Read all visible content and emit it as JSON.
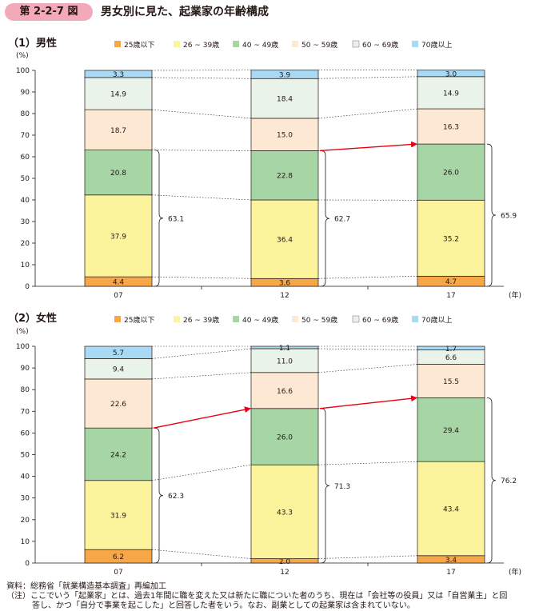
{
  "figure": {
    "number": "第 2-2-7 図",
    "title": "男女別に見た、起業家の年齢構成"
  },
  "colors": {
    "tag_background": "#f2a9b9",
    "series": [
      "#f7a748",
      "#fbf49c",
      "#a6d6a5",
      "#fde9d3",
      "#eaf3e9",
      "#a8d9f5"
    ],
    "arrow": "#e60012"
  },
  "chart_data": [
    {
      "type": "bar",
      "stacked": true,
      "panel_label": "（1）男性",
      "y_unit": "(%)",
      "x_unit": "(年)",
      "ylim": [
        0,
        100
      ],
      "y_ticks": [
        "0",
        "10",
        "20",
        "30",
        "40",
        "50",
        "60",
        "70",
        "80",
        "90",
        "100"
      ],
      "categories": [
        "07",
        "12",
        "17"
      ],
      "series": [
        {
          "name": "25歳以下",
          "values": [
            4.4,
            3.6,
            4.7
          ],
          "labels": [
            "4.4",
            "3.6",
            "4.7"
          ]
        },
        {
          "name": "26 ~ 39歳",
          "values": [
            37.9,
            36.4,
            35.2
          ],
          "labels": [
            "37.9",
            "36.4",
            "35.2"
          ]
        },
        {
          "name": "40 ~ 49歳",
          "values": [
            20.8,
            22.8,
            26.0
          ],
          "labels": [
            "20.8",
            "22.8",
            "26.0"
          ]
        },
        {
          "name": "50 ~ 59歳",
          "values": [
            18.7,
            15.0,
            16.3
          ],
          "labels": [
            "18.7",
            "15.0",
            "16.3"
          ]
        },
        {
          "name": "60 ~ 69歳",
          "values": [
            14.9,
            18.4,
            14.9
          ],
          "labels": [
            "14.9",
            "18.4",
            "14.9"
          ]
        },
        {
          "name": "70歳以上",
          "values": [
            3.3,
            3.9,
            3.0
          ],
          "labels": [
            "3.3",
            "3.9",
            "3.0"
          ]
        }
      ],
      "brace_totals": [
        "63.1",
        "62.7",
        "65.9"
      ],
      "arrows": [
        [
          1,
          2
        ]
      ],
      "legend_position": "top"
    },
    {
      "type": "bar",
      "stacked": true,
      "panel_label": "（2）女性",
      "y_unit": "(%)",
      "x_unit": "(年)",
      "ylim": [
        0,
        100
      ],
      "y_ticks": [
        "0",
        "10",
        "20",
        "30",
        "40",
        "50",
        "60",
        "70",
        "80",
        "90",
        "100"
      ],
      "categories": [
        "07",
        "12",
        "17"
      ],
      "series": [
        {
          "name": "25歳以下",
          "values": [
            6.2,
            2.0,
            3.4
          ],
          "labels": [
            "6.2",
            "2.0",
            "3.4"
          ]
        },
        {
          "name": "26 ~ 39歳",
          "values": [
            31.9,
            43.3,
            43.4
          ],
          "labels": [
            "31.9",
            "43.3",
            "43.4"
          ]
        },
        {
          "name": "40 ~ 49歳",
          "values": [
            24.2,
            26.0,
            29.4
          ],
          "labels": [
            "24.2",
            "26.0",
            "29.4"
          ]
        },
        {
          "name": "50 ~ 59歳",
          "values": [
            22.6,
            16.6,
            15.5
          ],
          "labels": [
            "22.6",
            "16.6",
            "15.5"
          ]
        },
        {
          "name": "60 ~ 69歳",
          "values": [
            9.4,
            11.0,
            6.6
          ],
          "labels": [
            "9.4",
            "11.0",
            "6.6"
          ]
        },
        {
          "name": "70歳以上",
          "values": [
            5.7,
            1.1,
            1.7
          ],
          "labels": [
            "5.7",
            "1.1",
            "1.7"
          ]
        }
      ],
      "brace_totals": [
        "62.3",
        "71.3",
        "76.2"
      ],
      "arrows": [
        [
          0,
          1
        ],
        [
          1,
          2
        ]
      ],
      "legend_position": "top"
    }
  ],
  "notes": {
    "source": "資料：総務省「就業構造基本調査」再編加工",
    "note_line1": "（注）ここでいう「起業家」とは、過去1年間に職を変えた又は新たに職についた者のうち、現在は「会社等の役員」又は「自営業主」と回",
    "note_line2": "答し、かつ「自分で事業を起こした」と回答した者をいう。なお、副業としての起業家は含まれていない。"
  }
}
